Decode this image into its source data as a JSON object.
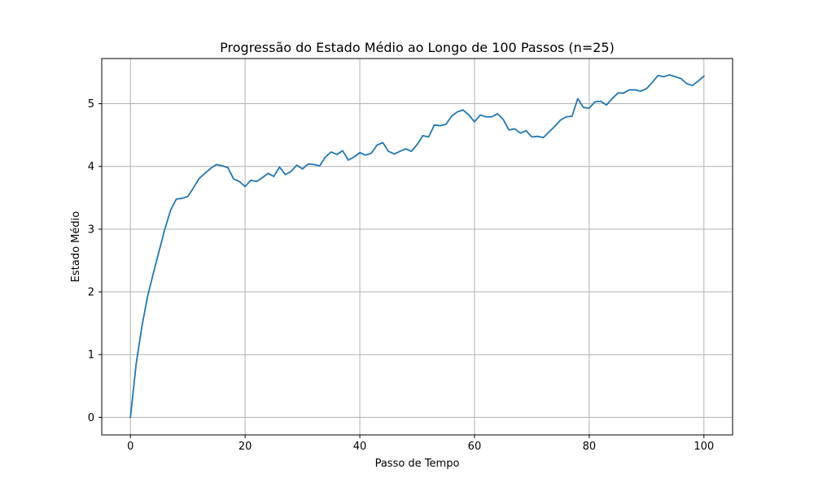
{
  "chart_data": {
    "type": "line",
    "title": "Progressão do Estado Médio ao Longo de 100 Passos (n=25)",
    "xlabel": "Passo de Tempo",
    "ylabel": "Estado Médio",
    "xlim": [
      -5,
      105
    ],
    "ylim": [
      -0.28,
      5.72
    ],
    "xticks": [
      0,
      20,
      40,
      60,
      80,
      100
    ],
    "yticks": [
      0,
      1,
      2,
      3,
      4,
      5
    ],
    "grid": true,
    "line_color": "#1f77b4",
    "x": [
      0,
      1,
      2,
      3,
      4,
      5,
      6,
      7,
      8,
      9,
      10,
      11,
      12,
      13,
      14,
      15,
      16,
      17,
      18,
      19,
      20,
      21,
      22,
      23,
      24,
      25,
      26,
      27,
      28,
      29,
      30,
      31,
      32,
      33,
      34,
      35,
      36,
      37,
      38,
      39,
      40,
      41,
      42,
      43,
      44,
      45,
      46,
      47,
      48,
      49,
      50,
      51,
      52,
      53,
      54,
      55,
      56,
      57,
      58,
      59,
      60,
      61,
      62,
      63,
      64,
      65,
      66,
      67,
      68,
      69,
      70,
      71,
      72,
      73,
      74,
      75,
      76,
      77,
      78,
      79,
      80,
      81,
      82,
      83,
      84,
      85,
      86,
      87,
      88,
      89,
      90,
      91,
      92,
      93,
      94,
      95,
      96,
      97,
      98,
      99,
      100
    ],
    "values": [
      0.0,
      0.85,
      1.45,
      1.93,
      2.3,
      2.65,
      3.0,
      3.3,
      3.48,
      3.49,
      3.52,
      3.66,
      3.81,
      3.89,
      3.97,
      4.03,
      4.01,
      3.98,
      3.8,
      3.76,
      3.68,
      3.78,
      3.76,
      3.82,
      3.89,
      3.84,
      3.99,
      3.87,
      3.92,
      4.02,
      3.96,
      4.04,
      4.03,
      4.01,
      4.15,
      4.23,
      4.19,
      4.25,
      4.1,
      4.15,
      4.22,
      4.18,
      4.21,
      4.34,
      4.38,
      4.24,
      4.2,
      4.24,
      4.28,
      4.24,
      4.35,
      4.49,
      4.47,
      4.66,
      4.65,
      4.67,
      4.8,
      4.87,
      4.9,
      4.82,
      4.71,
      4.82,
      4.79,
      4.79,
      4.84,
      4.75,
      4.58,
      4.6,
      4.53,
      4.57,
      4.47,
      4.48,
      4.46,
      4.55,
      4.64,
      4.74,
      4.79,
      4.8,
      5.08,
      4.94,
      4.93,
      5.03,
      5.04,
      4.98,
      5.08,
      5.17,
      5.17,
      5.22,
      5.22,
      5.2,
      5.24,
      5.34,
      5.45,
      5.43,
      5.46,
      5.43,
      5.4,
      5.32,
      5.29,
      5.36,
      5.44
    ]
  }
}
